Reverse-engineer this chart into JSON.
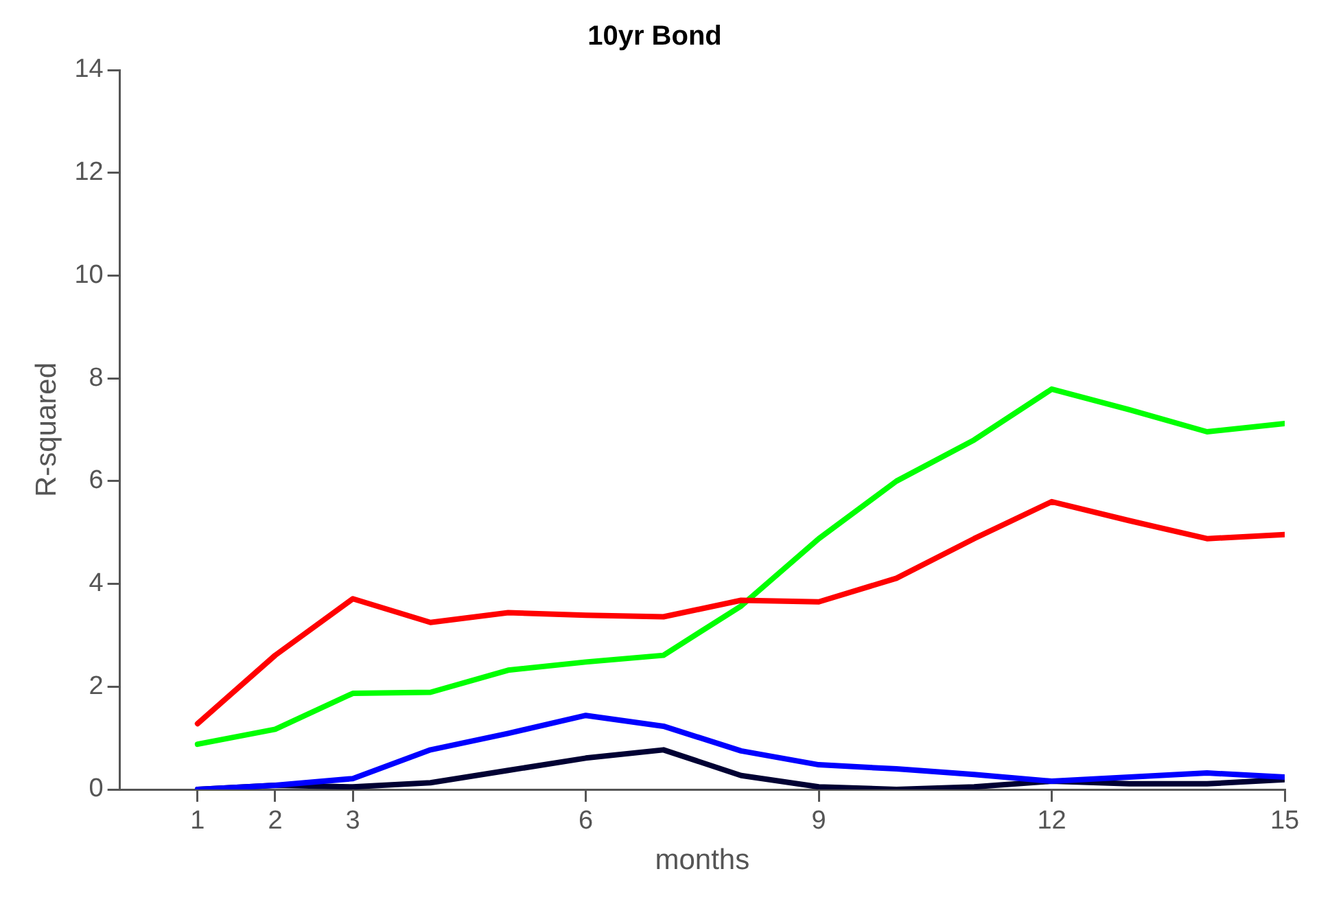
{
  "chart_data": {
    "type": "line",
    "title": "10yr Bond",
    "xlabel": "months",
    "ylabel": "R-squared",
    "x": [
      1,
      2,
      3,
      4,
      5,
      6,
      7,
      8,
      9,
      10,
      11,
      12,
      13,
      14,
      15
    ],
    "xlim": [
      0,
      15
    ],
    "xticks": [
      1,
      2,
      3,
      6,
      9,
      12,
      15
    ],
    "ylim": [
      0,
      14
    ],
    "yticks": [
      0,
      2,
      4,
      6,
      8,
      10,
      12,
      14
    ],
    "grid": false,
    "legend": false,
    "marker": "none",
    "line_style": "solid",
    "series": [
      {
        "color": "#ff0000",
        "values": [
          1.28,
          2.61,
          3.71,
          3.25,
          3.44,
          3.39,
          3.36,
          3.68,
          3.65,
          4.11,
          4.88,
          5.6,
          5.23,
          4.88,
          4.96
        ]
      },
      {
        "color": "#00ff00",
        "values": [
          0.88,
          1.17,
          1.87,
          1.89,
          2.32,
          2.48,
          2.61,
          3.57,
          4.88,
          6.0,
          6.8,
          7.79,
          7.39,
          6.96,
          7.12
        ]
      },
      {
        "color": "#0000ff",
        "values": [
          0,
          0.08,
          0.21,
          0.77,
          1.09,
          1.44,
          1.23,
          0.75,
          0.48,
          0.4,
          0.29,
          0.16,
          0.24,
          0.32,
          0.24
        ]
      },
      {
        "color": "#000033",
        "values": [
          0,
          0.08,
          0.05,
          0.13,
          0.37,
          0.61,
          0.77,
          0.27,
          0.05,
          0,
          0.05,
          0.16,
          0.11,
          0.11,
          0.19
        ]
      }
    ]
  }
}
